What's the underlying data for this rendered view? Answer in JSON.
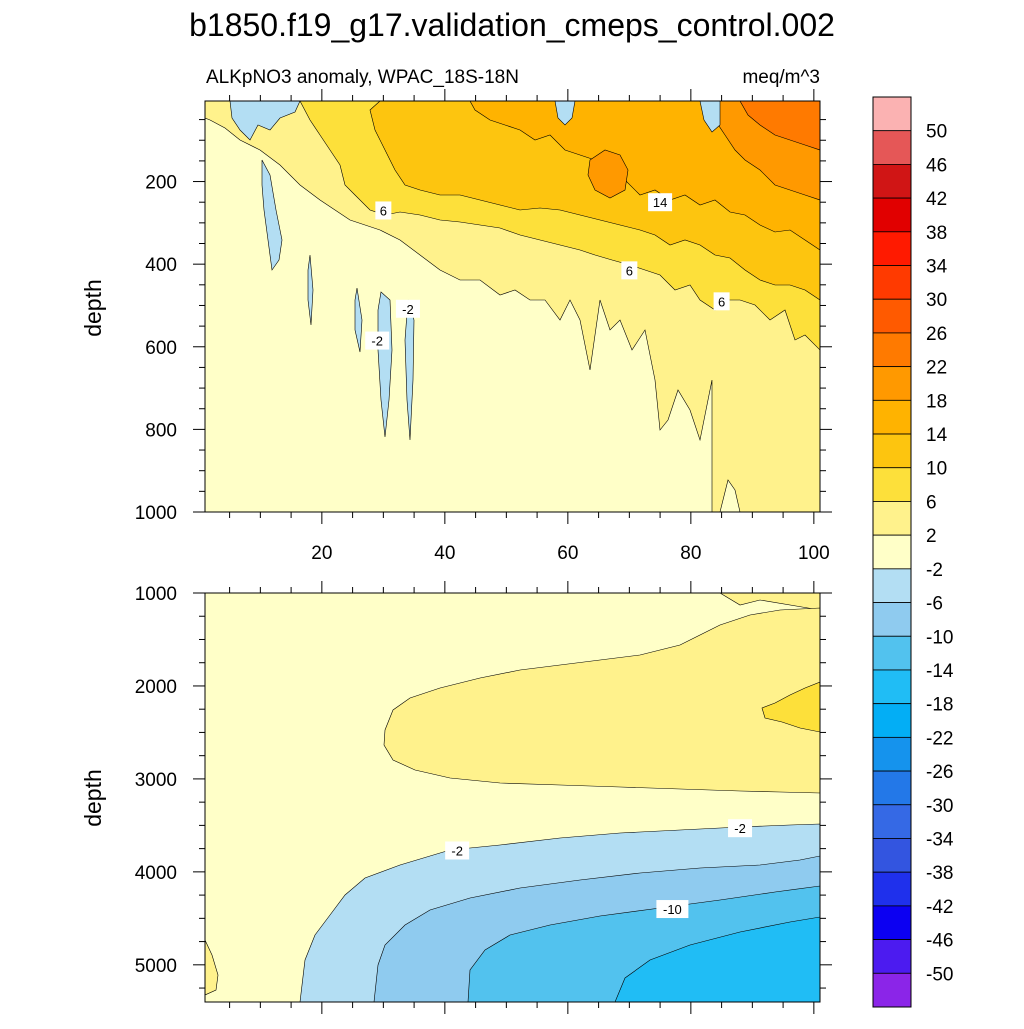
{
  "chart_data": {
    "type": "contour",
    "title": "b1850.f19_g17.validation_cmeps_control.002",
    "panels": [
      {
        "name": "upper",
        "left_label": "ALKpNO3 anomaly, WPAC_18S-18N",
        "right_label": "meq/m^3",
        "ylabel": "depth",
        "xlim": [
          1,
          101
        ],
        "ylim": [
          1000,
          5
        ],
        "yticks": [
          200,
          400,
          600,
          800,
          1000
        ],
        "xticks": [
          20,
          40,
          60,
          80,
          100
        ],
        "contour_labels": [
          {
            "text": "6",
            "x": 30,
            "y": 270
          },
          {
            "text": "14",
            "x": 75,
            "y": 250
          },
          {
            "text": "6",
            "x": 70,
            "y": 415
          },
          {
            "text": "6",
            "x": 85,
            "y": 490
          },
          {
            "text": "-2",
            "x": 34,
            "y": 508
          },
          {
            "text": "-2",
            "x": 29,
            "y": 585
          }
        ]
      },
      {
        "name": "lower",
        "ylabel": "depth",
        "xlim": [
          1,
          101
        ],
        "ylim": [
          5400,
          1000
        ],
        "yticks": [
          1000,
          2000,
          3000,
          4000,
          5000
        ],
        "contour_labels": [
          {
            "text": "-2",
            "x": 42,
            "y": 3770
          },
          {
            "text": "-2",
            "x": 88,
            "y": 3530
          },
          {
            "text": "-10",
            "x": 77,
            "y": 4400
          }
        ]
      }
    ],
    "colorbar": {
      "levels": [
        "50",
        "46",
        "42",
        "38",
        "34",
        "30",
        "26",
        "22",
        "18",
        "14",
        "10",
        "6",
        "2",
        "-2",
        "-6",
        "-10",
        "-14",
        "-18",
        "-22",
        "-26",
        "-30",
        "-34",
        "-38",
        "-42",
        "-46",
        "-50"
      ],
      "colors": [
        "#fbb2b2",
        "#e55757",
        "#d01515",
        "#e10000",
        "#ff1a00",
        "#ff3a00",
        "#ff5a00",
        "#ff7a00",
        "#ff9900",
        "#ffb300",
        "#fdc50f",
        "#fde03a",
        "#fff28c",
        "#ffffc8",
        "#b3def3",
        "#8fcbef",
        "#52c2ee",
        "#20bdf5",
        "#03aef5",
        "#1593ed",
        "#2378e8",
        "#3569e5",
        "#3355e0",
        "#1f30ec",
        "#0c00f2",
        "#4c1bf0",
        "#8b25e8"
      ]
    }
  }
}
